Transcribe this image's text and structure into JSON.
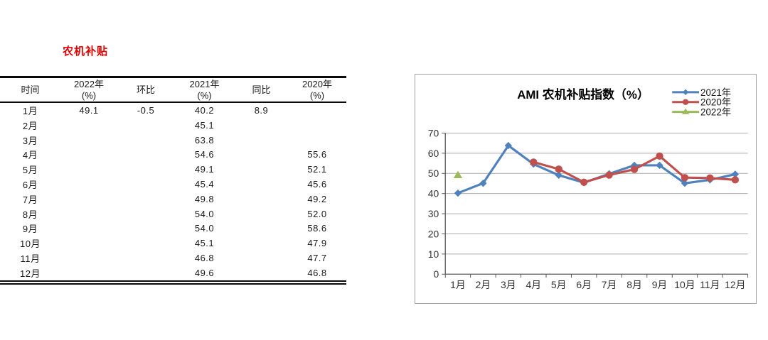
{
  "section": {
    "title": "农机补贴",
    "title_color": "#e00000"
  },
  "table": {
    "columns": [
      {
        "l1": "时间",
        "l2": ""
      },
      {
        "l1": "2022年",
        "l2": "(%)"
      },
      {
        "l1": "环比",
        "l2": ""
      },
      {
        "l1": "2021年",
        "l2": "(%)"
      },
      {
        "l1": "同比",
        "l2": ""
      },
      {
        "l1": "2020年",
        "l2": "(%)"
      }
    ],
    "rows": [
      [
        "1月",
        "49.1",
        "-0.5",
        "40.2",
        "8.9",
        ""
      ],
      [
        "2月",
        "",
        "",
        "45.1",
        "",
        ""
      ],
      [
        "3月",
        "",
        "",
        "63.8",
        "",
        ""
      ],
      [
        "4月",
        "",
        "",
        "54.6",
        "",
        "55.6"
      ],
      [
        "5月",
        "",
        "",
        "49.1",
        "",
        "52.1"
      ],
      [
        "6月",
        "",
        "",
        "45.4",
        "",
        "45.6"
      ],
      [
        "7月",
        "",
        "",
        "49.8",
        "",
        "49.2"
      ],
      [
        "8月",
        "",
        "",
        "54.0",
        "",
        "52.0"
      ],
      [
        "9月",
        "",
        "",
        "54.0",
        "",
        "58.6"
      ],
      [
        "10月",
        "",
        "",
        "45.1",
        "",
        "47.9"
      ],
      [
        "11月",
        "",
        "",
        "46.8",
        "",
        "47.7"
      ],
      [
        "12月",
        "",
        "",
        "49.6",
        "",
        "46.8"
      ]
    ]
  },
  "chart_data": {
    "type": "line",
    "title": "AMI 农机补贴指数（%）",
    "categories": [
      "1月",
      "2月",
      "3月",
      "4月",
      "5月",
      "6月",
      "7月",
      "8月",
      "9月",
      "10月",
      "11月",
      "12月"
    ],
    "xlabel": "",
    "ylabel": "",
    "ylim": [
      0,
      70
    ],
    "ytick_step": 10,
    "grid": true,
    "legend_position": "top-right",
    "series": [
      {
        "name": "2021年",
        "color": "#4F81BD",
        "marker": "diamond",
        "values": [
          40.2,
          45.1,
          63.8,
          54.6,
          49.1,
          45.4,
          49.8,
          54.0,
          54.0,
          45.1,
          46.8,
          49.6
        ]
      },
      {
        "name": "2020年",
        "color": "#C0504D",
        "marker": "circle",
        "values": [
          null,
          null,
          null,
          55.6,
          52.1,
          45.6,
          49.2,
          52.0,
          58.6,
          47.9,
          47.7,
          46.8
        ]
      },
      {
        "name": "2022年",
        "color": "#9BBB59",
        "marker": "triangle",
        "values": [
          49.1,
          null,
          null,
          null,
          null,
          null,
          null,
          null,
          null,
          null,
          null,
          null
        ]
      }
    ],
    "axis_color": "#595959",
    "grid_color": "#ababab",
    "label_color": "#333333"
  }
}
